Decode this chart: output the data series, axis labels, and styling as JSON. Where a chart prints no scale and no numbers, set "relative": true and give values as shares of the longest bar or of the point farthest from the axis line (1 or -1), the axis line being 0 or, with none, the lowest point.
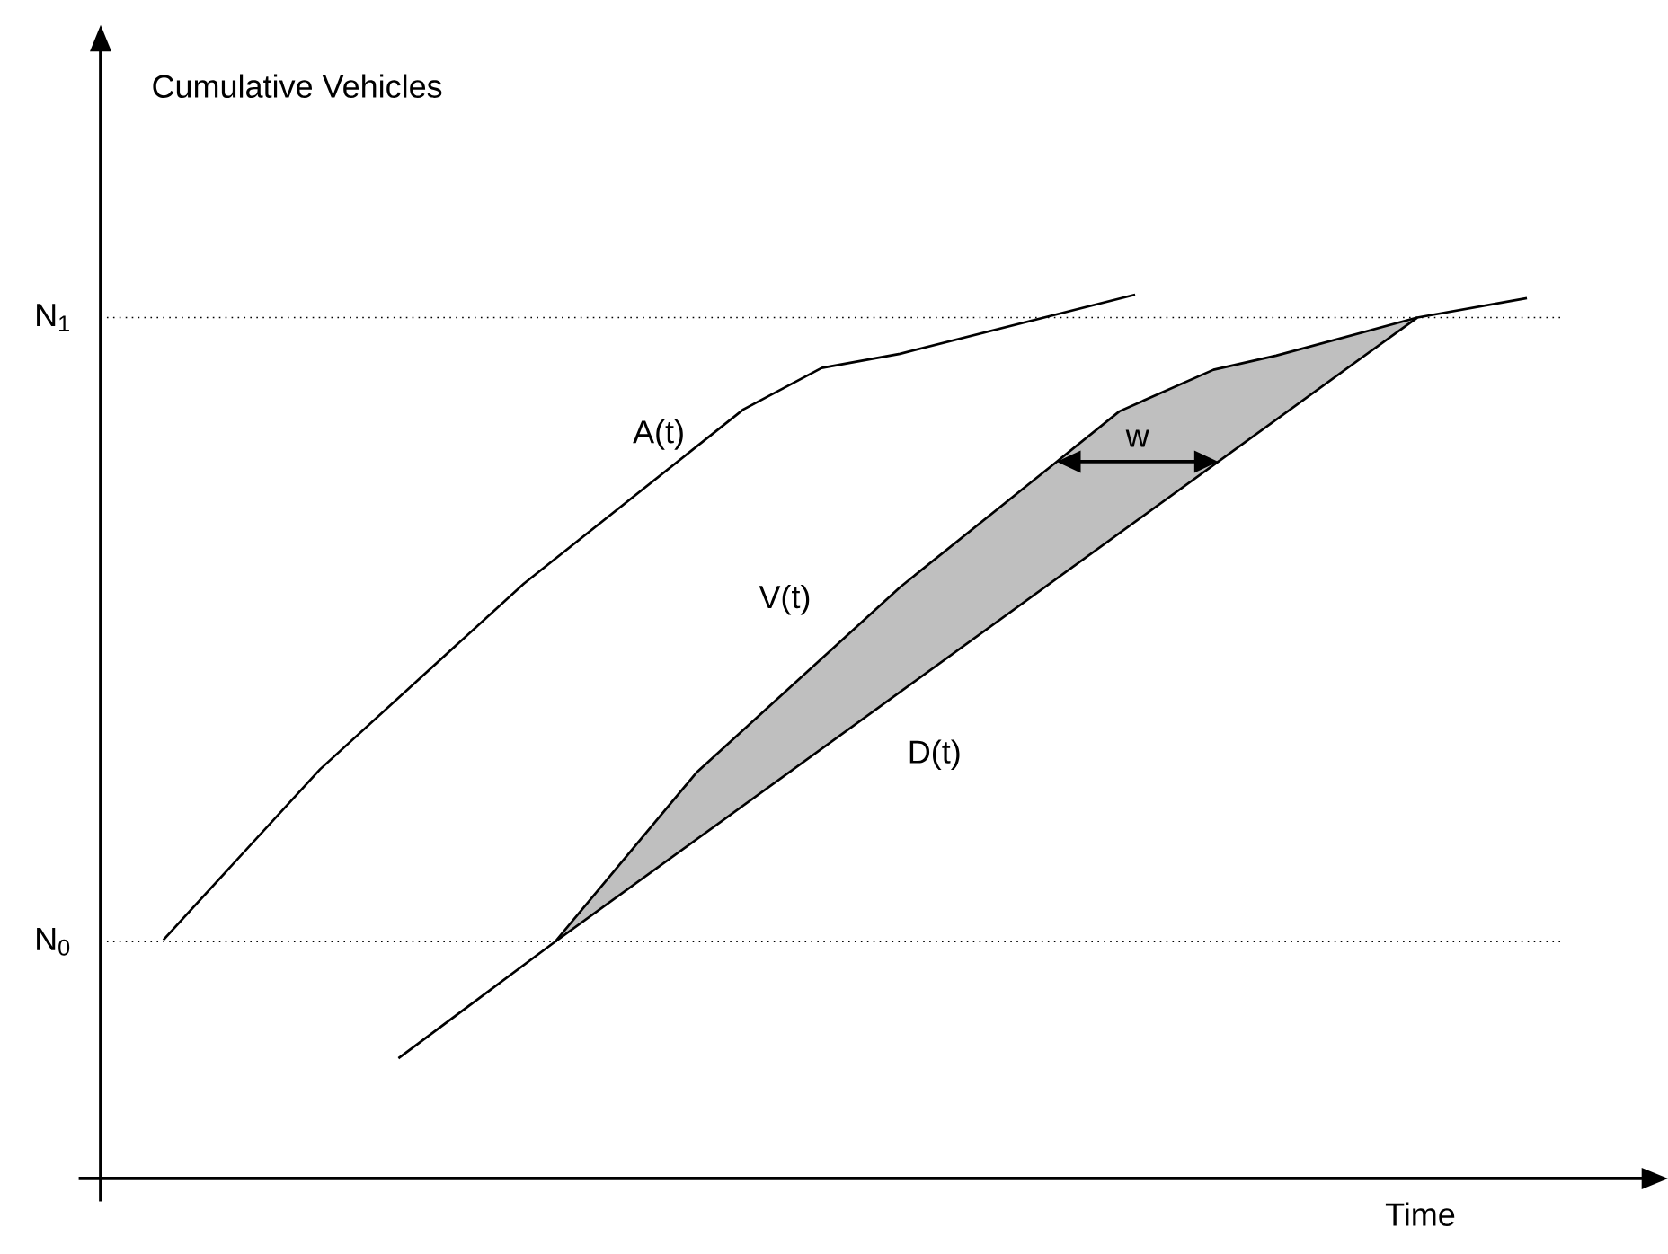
{
  "chart_data": {
    "type": "line",
    "relative": true,
    "xlabel": "Time",
    "marker": "none",
    "line_style": "solid",
    "categories": [
      null,
      null,
      null,
      null,
      null,
      null,
      null,
      null,
      null,
      null,
      null,
      null,
      null,
      null,
      null,
      null,
      null,
      null,
      null,
      null,
      null,
      null,
      null,
      null,
      null,
      null,
      null,
      null,
      null,
      null,
      null,
      null,
      null,
      null,
      null,
      null,
      null,
      null,
      null,
      null,
      null,
      null,
      null,
      null,
      null,
      null,
      null,
      null,
      null,
      null,
      null,
      null,
      null,
      null,
      null,
      null,
      null,
      null,
      null,
      null,
      null,
      null,
      null,
      null,
      null,
      null,
      null,
      null,
      null,
      null,
      null,
      null,
      null,
      null,
      null,
      null,
      null,
      null,
      null,
      null,
      null,
      null,
      null,
      null,
      null,
      null,
      null,
      null,
      null,
      null,
      null,
      null,
      null,
      null,
      null,
      null,
      null,
      null,
      null,
      null,
      null
    ],
    "series": [
      {
        "name": "A(t)",
        "color": "#000000",
        "values": [
          null,
          null,
          null,
          null,
          0.27,
          null,
          null,
          null,
          null,
          null,
          null,
          null,
          null,
          null,
          0.463,
          null,
          null,
          null,
          null,
          null,
          null,
          null,
          null,
          null,
          null,
          null,
          null,
          0.673,
          null,
          null,
          null,
          null,
          null,
          null,
          null,
          null,
          null,
          null,
          null,
          null,
          null,
          0.87,
          null,
          null,
          null,
          null,
          0.917,
          null,
          null,
          null,
          null,
          0.933,
          null,
          null,
          null,
          null,
          null,
          null,
          null,
          null,
          null,
          null,
          null,
          null,
          null,
          null,
          1.0,
          null,
          null,
          null,
          null,
          null,
          null,
          null,
          null,
          null,
          null,
          null,
          null,
          null,
          null,
          null,
          null,
          null,
          null,
          null,
          null,
          null,
          null,
          null,
          null,
          null,
          null,
          null,
          null,
          null,
          null,
          null,
          null,
          null,
          null
        ]
      },
      {
        "name": "V(t)",
        "color": "#000000",
        "values": [
          null,
          null,
          null,
          null,
          null,
          null,
          null,
          null,
          null,
          null,
          null,
          null,
          null,
          null,
          null,
          null,
          null,
          null,
          null,
          null,
          null,
          null,
          null,
          null,
          null,
          null,
          null,
          null,
          null,
          0.268,
          null,
          null,
          null,
          null,
          null,
          null,
          null,
          null,
          0.459,
          null,
          null,
          null,
          null,
          null,
          null,
          null,
          null,
          null,
          null,
          null,
          null,
          0.669,
          null,
          null,
          null,
          null,
          null,
          null,
          null,
          null,
          null,
          0.811,
          null,
          null,
          null,
          0.868,
          null,
          null,
          null,
          null,
          null,
          0.915,
          null,
          null,
          null,
          0.931,
          null,
          null,
          null,
          null,
          null,
          null,
          null,
          null,
          0.974,
          null,
          null,
          null,
          null,
          null,
          null,
          null,
          null,
          null,
          null,
          null,
          null,
          null,
          null,
          null,
          null
        ],
        "lower": [
          null,
          null,
          null,
          null,
          null,
          null,
          null,
          null,
          null,
          null,
          null,
          null,
          null,
          null,
          null,
          null,
          null,
          null,
          null,
          null,
          null,
          null,
          null,
          null,
          null,
          null,
          null,
          null,
          null,
          0.268,
          null,
          null,
          null,
          null,
          null,
          null,
          null,
          null,
          0.384,
          null,
          null,
          null,
          null,
          null,
          null,
          null,
          null,
          null,
          null,
          null,
          null,
          0.55,
          null,
          null,
          null,
          null,
          null,
          null,
          null,
          null,
          null,
          0.679,
          null,
          null,
          null,
          0.73,
          null,
          null,
          null,
          null,
          null,
          0.807,
          null,
          null,
          null,
          0.858,
          null,
          null,
          null,
          null,
          null,
          null,
          null,
          null,
          0.974,
          null,
          null,
          null,
          null,
          null,
          null,
          null,
          null,
          null,
          null,
          null,
          null,
          null,
          null,
          null,
          null
        ],
        "upper": [
          null,
          null,
          null,
          null,
          null,
          null,
          null,
          null,
          null,
          null,
          null,
          null,
          null,
          null,
          null,
          null,
          null,
          null,
          null,
          null,
          null,
          null,
          null,
          null,
          null,
          null,
          null,
          null,
          null,
          0.268,
          null,
          null,
          null,
          null,
          null,
          null,
          null,
          null,
          0.459,
          null,
          null,
          null,
          null,
          null,
          null,
          null,
          null,
          null,
          null,
          null,
          null,
          0.669,
          null,
          null,
          null,
          null,
          null,
          null,
          null,
          null,
          null,
          0.811,
          null,
          null,
          null,
          0.868,
          null,
          null,
          null,
          null,
          null,
          0.915,
          null,
          null,
          null,
          0.931,
          null,
          null,
          null,
          null,
          null,
          null,
          null,
          null,
          0.974,
          null,
          null,
          null,
          null,
          null,
          null,
          null,
          null,
          null,
          null,
          null,
          null,
          null,
          null,
          null,
          null
        ]
      },
      {
        "name": "D(t)",
        "color": "#000000",
        "values": [
          null,
          null,
          null,
          null,
          null,
          null,
          null,
          null,
          null,
          null,
          null,
          null,
          null,
          null,
          null,
          null,
          null,
          null,
          null,
          0.136,
          null,
          null,
          null,
          null,
          null,
          null,
          null,
          null,
          null,
          0.268,
          null,
          null,
          null,
          null,
          null,
          null,
          null,
          null,
          null,
          null,
          null,
          null,
          null,
          null,
          null,
          null,
          null,
          null,
          null,
          null,
          null,
          null,
          null,
          null,
          null,
          null,
          null,
          null,
          null,
          null,
          null,
          null,
          null,
          null,
          null,
          null,
          null,
          null,
          null,
          null,
          null,
          null,
          null,
          null,
          null,
          null,
          null,
          null,
          null,
          null,
          null,
          null,
          null,
          null,
          0.974,
          null,
          null,
          null,
          null,
          null,
          null,
          0.996,
          null,
          null,
          null,
          null,
          null,
          null,
          null,
          null,
          null
        ]
      }
    ],
    "ref_lines": [
      {
        "axis": "y",
        "value": 0.268,
        "label": "N$_{0}$",
        "line_style": "dotted",
        "color": "#000000"
      },
      {
        "axis": "y",
        "value": 0.974,
        "label": "N$_{1}$",
        "line_style": "dotted",
        "color": "#000000"
      }
    ],
    "annotations": [
      "w",
      "Cumulative Vehicles"
    ]
  }
}
